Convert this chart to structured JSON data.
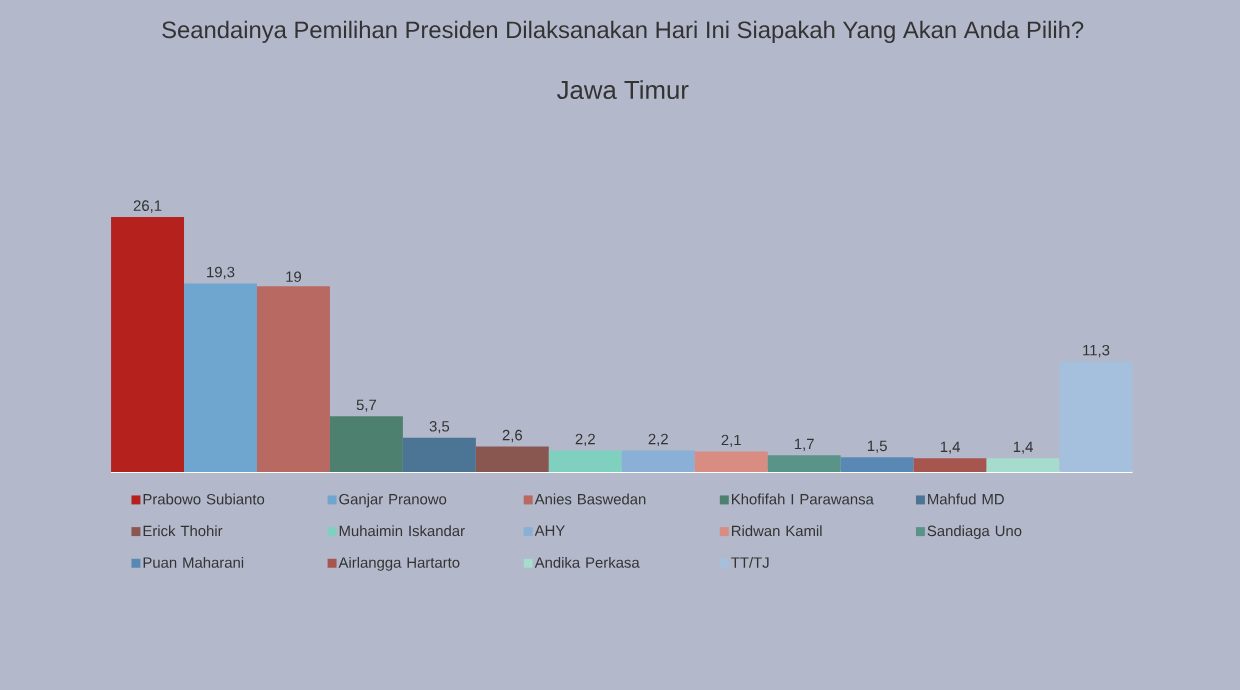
{
  "chart_data": {
    "type": "bar",
    "title": "Seandainya Pemilihan Presiden Dilaksanakan Hari Ini Siapakah Yang Akan Anda Pilih?",
    "subtitle": "Jawa Timur",
    "categories": [
      null
    ],
    "legend": "bottom",
    "series": [
      {
        "name": "Prabowo Subianto",
        "color": "#b5221e",
        "values": [
          26.1
        ],
        "value_labels": [
          "26,1"
        ]
      },
      {
        "name": "Ganjar Pranowo",
        "color": "#6fa6d0",
        "values": [
          19.3
        ],
        "value_labels": [
          "19,3"
        ]
      },
      {
        "name": "Anies Baswedan",
        "color": "#b86a62",
        "values": [
          19
        ],
        "value_labels": [
          "19"
        ]
      },
      {
        "name": "Khofifah I Parawansa",
        "color": "#4e8070",
        "values": [
          5.7
        ],
        "value_labels": [
          "5,7"
        ]
      },
      {
        "name": "Mahfud MD",
        "color": "#4c7494",
        "values": [
          3.5
        ],
        "value_labels": [
          "3,5"
        ]
      },
      {
        "name": "Erick Thohir",
        "color": "#8a5650",
        "values": [
          2.6
        ],
        "value_labels": [
          "2,6"
        ]
      },
      {
        "name": "Muhaimin Iskandar",
        "color": "#7fd0bf",
        "values": [
          2.2
        ],
        "value_labels": [
          "2,2"
        ]
      },
      {
        "name": "AHY",
        "color": "#8ab0d8",
        "values": [
          2.2
        ],
        "value_labels": [
          "2,2"
        ]
      },
      {
        "name": "Ridwan Kamil",
        "color": "#d88c82",
        "values": [
          2.1
        ],
        "value_labels": [
          "2,1"
        ]
      },
      {
        "name": "Sandiaga Uno",
        "color": "#5a9488",
        "values": [
          1.7
        ],
        "value_labels": [
          "1,7"
        ]
      },
      {
        "name": "Puan Maharani",
        "color": "#5a88b4",
        "values": [
          1.5
        ],
        "value_labels": [
          "1,5"
        ]
      },
      {
        "name": "Airlangga Hartarto",
        "color": "#a6564e",
        "values": [
          1.4
        ],
        "value_labels": [
          "1,4"
        ]
      },
      {
        "name": "Andika Perkasa",
        "color": "#a6dccb",
        "values": [
          1.4
        ],
        "value_labels": [
          "1,4"
        ]
      },
      {
        "name": "TT/TJ",
        "color": "#a4c0dc",
        "values": [
          11.3
        ],
        "value_labels": [
          "11,3"
        ]
      }
    ]
  }
}
